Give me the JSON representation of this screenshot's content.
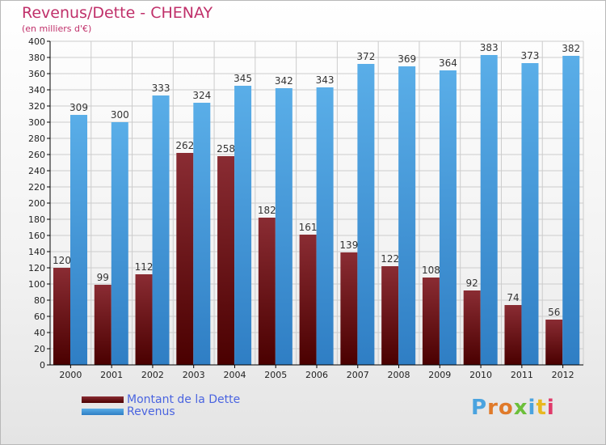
{
  "title": "Revenus/Dette - CHENAY",
  "subtitle": "(en milliers d'€)",
  "brand": "Proxiti",
  "colors": {
    "debt_top": "#8a2c33",
    "debt_bottom": "#4a0000",
    "revenue_top": "#5aaee8",
    "revenue_bottom": "#2f7ec4",
    "grid": "#cccccc",
    "axis": "#000000"
  },
  "chart_data": {
    "type": "bar",
    "categories": [
      "2000",
      "2001",
      "2002",
      "2003",
      "2004",
      "2005",
      "2006",
      "2007",
      "2008",
      "2009",
      "2010",
      "2011",
      "2012"
    ],
    "series": [
      {
        "name": "Montant de la Dette",
        "values": [
          120,
          99,
          112,
          262,
          258,
          182,
          161,
          139,
          122,
          108,
          92,
          74,
          56
        ]
      },
      {
        "name": "Revenus",
        "values": [
          309,
          300,
          333,
          324,
          345,
          342,
          343,
          372,
          369,
          364,
          383,
          373,
          382
        ]
      }
    ],
    "ylim": [
      0,
      400
    ],
    "ytick_step": 20,
    "grid": true,
    "legend_position": "bottom-left"
  }
}
